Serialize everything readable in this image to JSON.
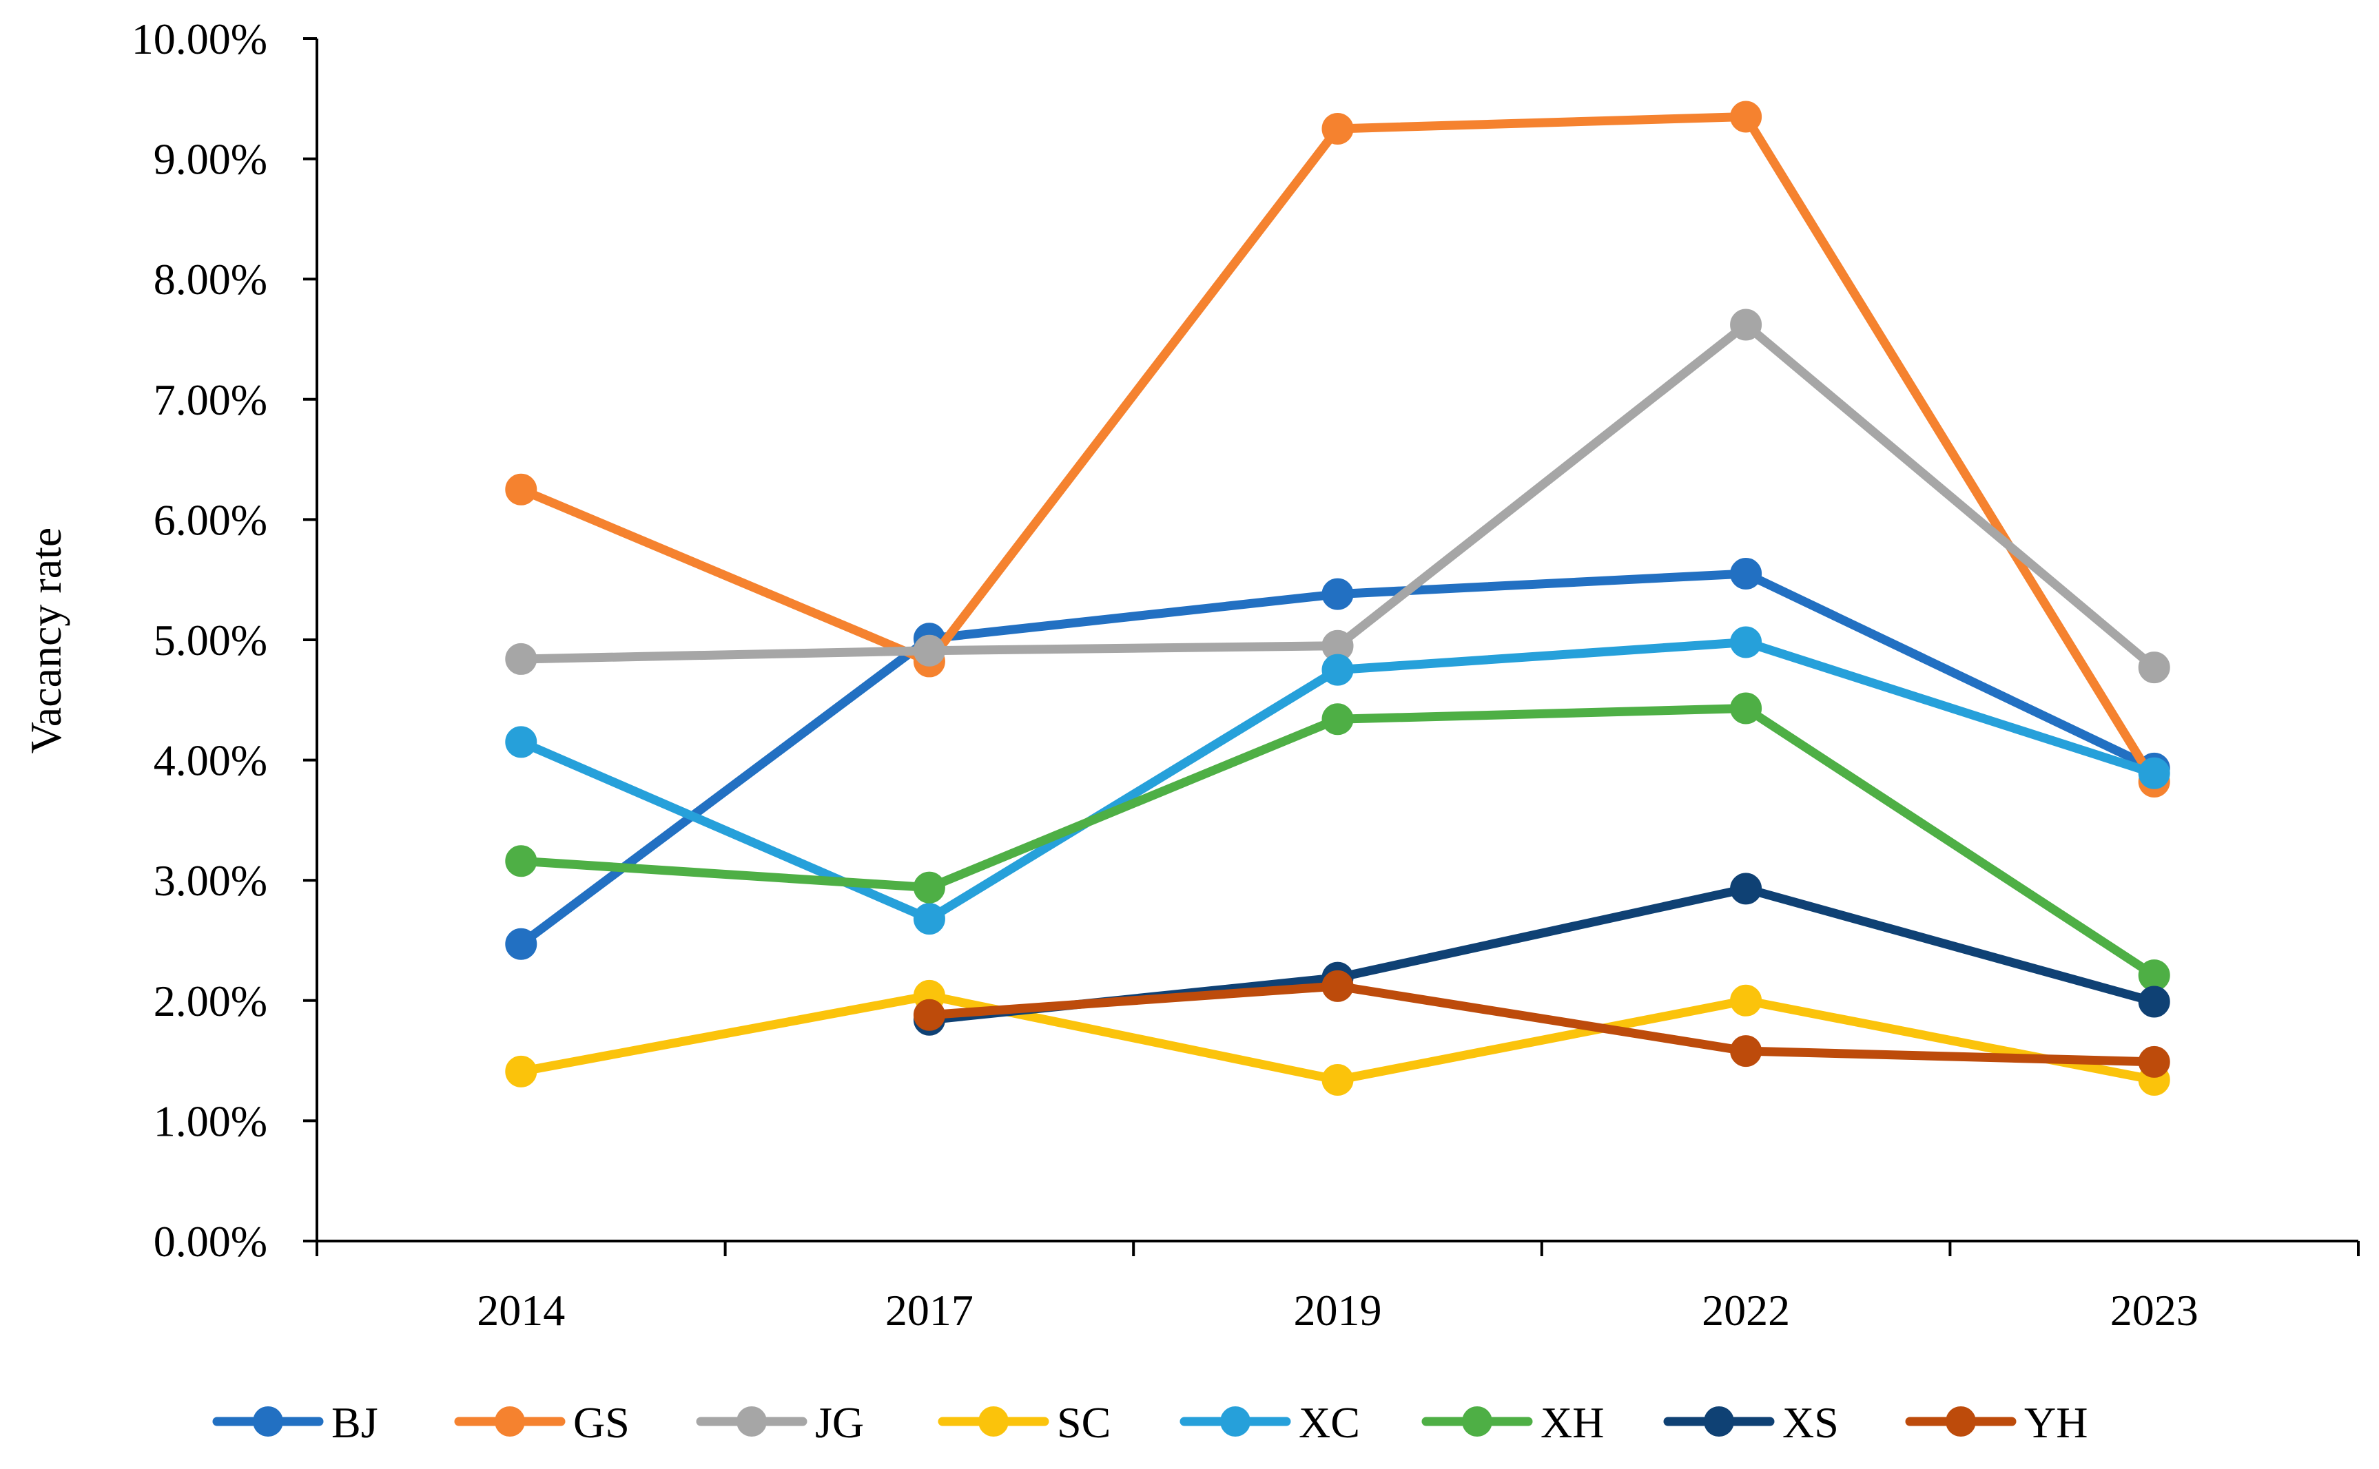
{
  "chart_data": {
    "type": "line",
    "title": "",
    "xlabel": "",
    "ylabel": "Vacancy rate",
    "ylim": [
      0,
      10
    ],
    "y_tick_step": 1,
    "y_tick_labels": [
      "0.00%",
      "1.00%",
      "2.00%",
      "3.00%",
      "4.00%",
      "5.00%",
      "6.00%",
      "7.00%",
      "8.00%",
      "9.00%",
      "10.00%"
    ],
    "categories": [
      "2014",
      "2017",
      "2019",
      "2022",
      "2023"
    ],
    "legend_position": "bottom",
    "grid": false,
    "series": [
      {
        "name": "BJ",
        "color": "#2270C2",
        "values": [
          2.47,
          5.01,
          5.38,
          5.55,
          3.93
        ]
      },
      {
        "name": "GS",
        "color": "#F5822F",
        "values": [
          6.25,
          4.82,
          9.25,
          9.35,
          3.82
        ]
      },
      {
        "name": "JG",
        "color": "#A6A6A6",
        "values": [
          4.84,
          4.91,
          4.95,
          7.62,
          4.77
        ]
      },
      {
        "name": "SC",
        "color": "#FBC30B",
        "values": [
          1.41,
          2.04,
          1.34,
          2.0,
          1.34
        ]
      },
      {
        "name": "XC",
        "color": "#26A0DA",
        "values": [
          4.15,
          2.68,
          4.75,
          4.98,
          3.89
        ]
      },
      {
        "name": "XH",
        "color": "#4EAF45",
        "values": [
          3.16,
          2.94,
          4.34,
          4.43,
          2.21
        ]
      },
      {
        "name": "XS",
        "color": "#0F4174",
        "values": [
          null,
          1.84,
          2.19,
          2.93,
          1.99
        ]
      },
      {
        "name": "YH",
        "color": "#BD4B0B",
        "values": [
          null,
          1.88,
          2.12,
          1.58,
          1.49
        ]
      }
    ]
  }
}
